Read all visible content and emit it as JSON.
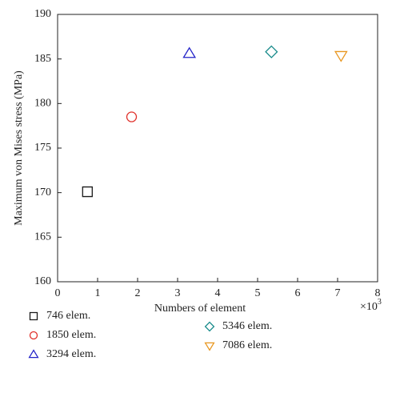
{
  "chart_data": {
    "type": "scatter",
    "x_label": "Numbers of element",
    "y_label": "Maximum von Mises stress (MPa)",
    "x_scale_label": "×10",
    "x_scale_exponent": "3",
    "xlim": [
      0,
      8
    ],
    "xticks": [
      0,
      1,
      2,
      3,
      4,
      5,
      6,
      7,
      8
    ],
    "ylim": [
      160,
      190
    ],
    "yticks": [
      160,
      165,
      170,
      175,
      180,
      185,
      190
    ],
    "series": [
      {
        "name": "746 elem.",
        "color": "#1a1a1a",
        "marker": "square",
        "x": [
          0.746
        ],
        "values": [
          170.1
        ]
      },
      {
        "name": "1850 elem.",
        "color": "#e0302a",
        "marker": "circle",
        "x": [
          1.85
        ],
        "values": [
          178.5
        ]
      },
      {
        "name": "3294 elem.",
        "color": "#2424c8",
        "marker": "triangle-up",
        "x": [
          3.294
        ],
        "values": [
          185.6
        ]
      },
      {
        "name": "5346 elem.",
        "color": "#1a8c8c",
        "marker": "diamond",
        "x": [
          5.346
        ],
        "values": [
          185.8
        ]
      },
      {
        "name": "7086 elem.",
        "color": "#e8961e",
        "marker": "triangle-down",
        "x": [
          7.086
        ],
        "values": [
          185.4
        ]
      }
    ]
  }
}
